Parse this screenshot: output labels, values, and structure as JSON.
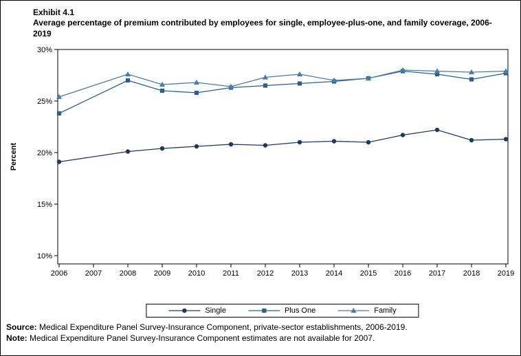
{
  "header": {
    "exhibit": "Exhibit 4.1",
    "title": "Average percentage of premium contributed by employees for single, employee-plus-one, and family coverage, 2006-2019"
  },
  "chart_data": {
    "type": "line",
    "title": "Average percentage of premium contributed by employees for single, employee-plus-one, and family coverage, 2006-2019",
    "xlabel": "",
    "ylabel": "Percent",
    "x": [
      2006,
      2007,
      2008,
      2009,
      2010,
      2011,
      2012,
      2013,
      2014,
      2015,
      2016,
      2017,
      2018,
      2019
    ],
    "x_tick_labels": [
      "2006",
      "2007",
      "2008",
      "2009",
      "2010",
      "2011",
      "2012",
      "2013",
      "2014",
      "2015",
      "2016",
      "2017",
      "2018",
      "2019"
    ],
    "ylim": [
      9.2,
      30
    ],
    "yticks": [
      10,
      15,
      20,
      25,
      30
    ],
    "ytick_labels": [
      "10%",
      "15%",
      "20%",
      "25%",
      "30%"
    ],
    "grid": false,
    "legend_position": "bottom",
    "note": "2007 estimates not available (gap in data)",
    "series": [
      {
        "name": "Single",
        "marker": "circle",
        "color": "#1b3a5e",
        "values": [
          19.1,
          null,
          20.1,
          20.4,
          20.6,
          20.8,
          20.7,
          21.0,
          21.1,
          21.0,
          21.7,
          22.2,
          21.2,
          21.3
        ]
      },
      {
        "name": "Plus One",
        "marker": "square",
        "color": "#2d5f8e",
        "values": [
          23.8,
          null,
          27.0,
          26.0,
          25.8,
          26.3,
          26.5,
          26.7,
          26.9,
          27.2,
          27.9,
          27.6,
          27.1,
          27.7
        ]
      },
      {
        "name": "Family",
        "marker": "triangle",
        "color": "#4a7aa6",
        "values": [
          25.4,
          null,
          27.6,
          26.6,
          26.8,
          26.4,
          27.3,
          27.6,
          27.0,
          27.2,
          28.0,
          27.9,
          27.8,
          27.9
        ]
      }
    ]
  },
  "footer": {
    "source_label": "Source:",
    "source_text": " Medical Expenditure Panel Survey-Insurance Component, private-sector establishments, 2006-2019.",
    "note_label": "Note:",
    "note_text": " Medical Expenditure Panel Survey-Insurance Component estimates are not available for 2007."
  }
}
